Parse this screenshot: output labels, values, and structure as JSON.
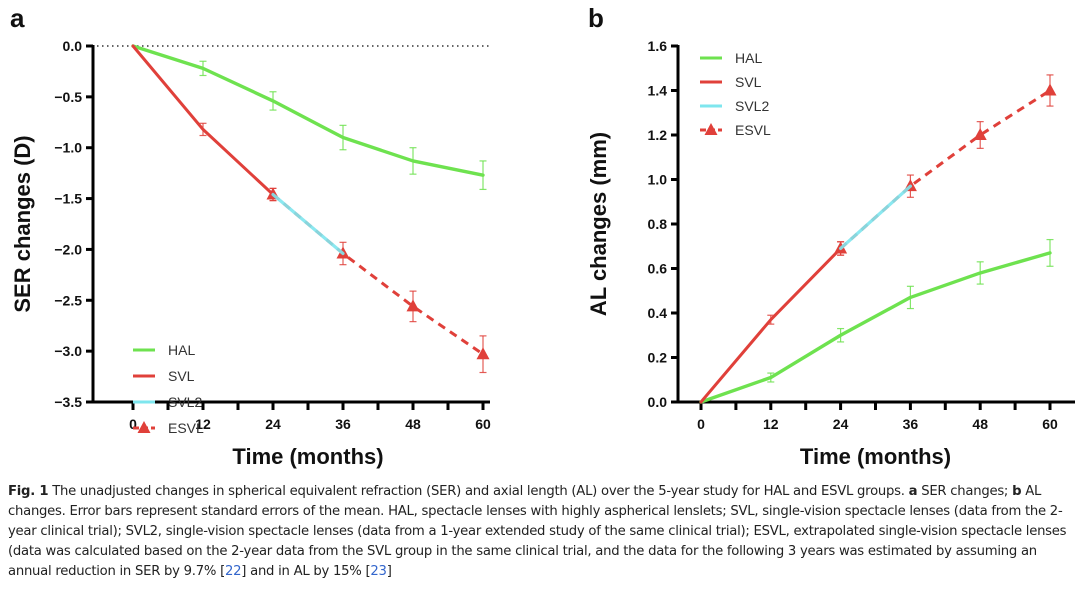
{
  "figure": {
    "caption": {
      "fig_label": "Fig. 1",
      "part1": " The unadjusted changes in spherical equivalent refraction (SER) and axial length (AL) over the 5-year study for HAL and ESVL groups. ",
      "a_label": "a",
      "part2": " SER changes; ",
      "b_label": "b",
      "part3": " AL changes. Error bars represent standard errors of the mean. HAL, spectacle lenses with highly aspherical lenslets; SVL, single-vision spectacle lenses (data from the 2-year clinical trial); SVL2, single-vision spectacle lenses (data from a 1-year extended study of the same clinical trial); ESVL, extrapolated single-vision spectacle lenses (data was calculated based on the 2-year data from the SVL group in the same clinical trial, and the data for the following 3 years was estimated by assuming an annual reduction in SER by 9.7% [",
      "ref1": "22",
      "part4": "] and in AL by 15% [",
      "ref2": "23",
      "part5": "]"
    },
    "colors": {
      "HAL": "#6ee24f",
      "SVL": "#e0403a",
      "SVL2": "#7ee6ee",
      "ESVL": "#e0403a"
    }
  },
  "chart_data": [
    {
      "panel": "a",
      "type": "line",
      "title": "",
      "xlabel": "Time (months)",
      "ylabel": "SER changes (D)",
      "xlim": [
        0,
        60
      ],
      "ylim": [
        -3.5,
        0.0
      ],
      "xticks": [
        0,
        12,
        24,
        36,
        48,
        60
      ],
      "xtick_labels": [
        "0",
        "12",
        "24",
        "36",
        "48",
        "60"
      ],
      "yticks": [
        0.0,
        -0.5,
        -1.0,
        -1.5,
        -2.0,
        -2.5,
        -3.0,
        -3.5
      ],
      "ytick_labels": [
        "0.0",
        "−0.5",
        "−1.0",
        "−1.5",
        "−2.0",
        "−2.5",
        "−3.0",
        "−3.5"
      ],
      "reference_line": {
        "y": 0,
        "style": "dotted"
      },
      "legend": {
        "position": "bottom-left",
        "entries": [
          "HAL",
          "SVL",
          "SVL2",
          "ESVL"
        ]
      },
      "grid": false,
      "series": [
        {
          "name": "HAL",
          "style": "solid",
          "marker": "none",
          "x": [
            0,
            12,
            24,
            36,
            48,
            60
          ],
          "values": [
            0,
            -0.22,
            -0.54,
            -0.9,
            -1.13,
            -1.27
          ],
          "errors": [
            0,
            0.07,
            0.09,
            0.12,
            0.13,
            0.14
          ]
        },
        {
          "name": "SVL",
          "style": "solid",
          "marker": "none",
          "x": [
            0,
            12,
            24
          ],
          "values": [
            0,
            -0.82,
            -1.46
          ],
          "errors": [
            0,
            0.06,
            0.06
          ]
        },
        {
          "name": "ESVL",
          "style": "dashed",
          "marker": "triangle",
          "x": [
            24,
            36,
            48,
            60
          ],
          "values": [
            -1.46,
            -2.04,
            -2.56,
            -3.03
          ],
          "errors": [
            0.06,
            0.11,
            0.15,
            0.18
          ]
        },
        {
          "name": "SVL2",
          "style": "solid",
          "marker": "none",
          "x": [
            24,
            36
          ],
          "values": [
            -1.46,
            -2.04
          ],
          "errors": [
            0,
            0
          ]
        }
      ]
    },
    {
      "panel": "b",
      "type": "line",
      "title": "",
      "xlabel": "Time (months)",
      "ylabel": "AL changes (mm)",
      "xlim": [
        0,
        60
      ],
      "ylim": [
        0.0,
        1.6
      ],
      "xticks": [
        0,
        12,
        24,
        36,
        48,
        60
      ],
      "xtick_labels": [
        "0",
        "12",
        "24",
        "36",
        "48",
        "60"
      ],
      "yticks": [
        0.0,
        0.2,
        0.4,
        0.6,
        0.8,
        1.0,
        1.2,
        1.4,
        1.6
      ],
      "ytick_labels": [
        "0.0",
        "0.2",
        "0.4",
        "0.6",
        "0.8",
        "1.0",
        "1.2",
        "1.4",
        "1.6"
      ],
      "legend": {
        "position": "top-left",
        "entries": [
          "HAL",
          "SVL",
          "SVL2",
          "ESVL"
        ]
      },
      "grid": false,
      "series": [
        {
          "name": "HAL",
          "style": "solid",
          "marker": "none",
          "x": [
            0,
            12,
            24,
            36,
            48,
            60
          ],
          "values": [
            0,
            0.11,
            0.3,
            0.47,
            0.58,
            0.67
          ],
          "errors": [
            0,
            0.02,
            0.03,
            0.05,
            0.05,
            0.06
          ]
        },
        {
          "name": "SVL",
          "style": "solid",
          "marker": "none",
          "x": [
            0,
            12,
            24
          ],
          "values": [
            0,
            0.37,
            0.69
          ],
          "errors": [
            0,
            0.02,
            0.03
          ]
        },
        {
          "name": "ESVL",
          "style": "dashed",
          "marker": "triangle",
          "x": [
            24,
            36,
            48,
            60
          ],
          "values": [
            0.69,
            0.97,
            1.2,
            1.4
          ],
          "errors": [
            0.03,
            0.05,
            0.06,
            0.07
          ]
        },
        {
          "name": "SVL2",
          "style": "solid",
          "marker": "none",
          "x": [
            24,
            36
          ],
          "values": [
            0.69,
            0.97
          ],
          "errors": [
            0,
            0
          ]
        }
      ]
    }
  ]
}
